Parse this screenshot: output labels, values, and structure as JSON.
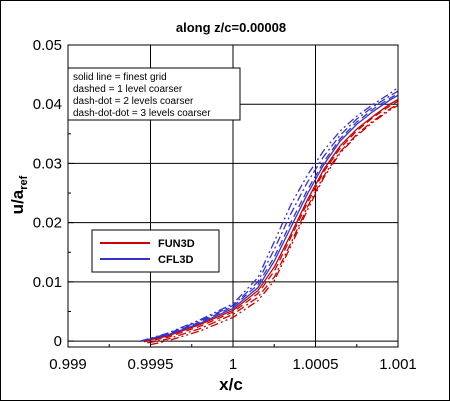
{
  "chart_data": {
    "type": "line",
    "title": "along z/c=0.00008",
    "xlabel": "x/c",
    "ylabel_main": "u/a",
    "ylabel_sub": "ref",
    "xlim": [
      0.999,
      1.001
    ],
    "ylim": [
      -0.001,
      0.05
    ],
    "xticks": [
      0.999,
      0.9995,
      1,
      1.0005,
      1.001
    ],
    "xtick_labels": [
      "0.999",
      "0.9995",
      "1",
      "1.0005",
      "1.001"
    ],
    "yticks": [
      0,
      0.01,
      0.02,
      0.03,
      0.04,
      0.05
    ],
    "ytick_labels": [
      "0",
      "0.01",
      "0.02",
      "0.03",
      "0.04",
      "0.05"
    ],
    "grid": true,
    "note_lines": [
      "solid line = finest grid",
      "dashed = 1 level coarser",
      "dash-dot = 2 levels coarser",
      "dash-dot-dot = 3 levels coarser"
    ],
    "legend": [
      {
        "name": "FUN3D",
        "color": "#cc0000"
      },
      {
        "name": "CFL3D",
        "color": "#3333cc"
      }
    ],
    "series": [
      {
        "name": "FUN3D",
        "grid": "finest",
        "style": "solid",
        "color": "#cc0000",
        "x": [
          0.99946,
          0.9996,
          0.9998,
          1.0,
          1.00015,
          1.00025,
          1.00035,
          1.00045,
          1.00055,
          1.00065,
          1.00075,
          1.00085,
          1.00095,
          1.001
        ],
        "y": [
          0.0,
          0.0008,
          0.0028,
          0.0052,
          0.0085,
          0.0125,
          0.018,
          0.0238,
          0.029,
          0.033,
          0.0358,
          0.038,
          0.04,
          0.0408
        ]
      },
      {
        "name": "FUN3D",
        "grid": "1 level coarser",
        "style": "dashed",
        "color": "#cc0000",
        "x": [
          0.99946,
          0.9996,
          0.9998,
          1.0,
          1.00015,
          1.00025,
          1.00035,
          1.00045,
          1.00055,
          1.00065,
          1.00075,
          1.00085,
          1.00095,
          1.001
        ],
        "y": [
          -0.0001,
          0.0006,
          0.0025,
          0.0049,
          0.008,
          0.0118,
          0.0175,
          0.0233,
          0.0286,
          0.0326,
          0.0355,
          0.0378,
          0.0397,
          0.0405
        ]
      },
      {
        "name": "FUN3D",
        "grid": "2 levels coarser",
        "style": "dash-dot",
        "color": "#cc0000",
        "x": [
          0.99948,
          0.9996,
          0.9998,
          1.0,
          1.00015,
          1.00025,
          1.00035,
          1.00045,
          1.00055,
          1.00065,
          1.00075,
          1.00085,
          1.00095,
          1.001
        ],
        "y": [
          -0.0003,
          0.0003,
          0.0021,
          0.0045,
          0.0074,
          0.0108,
          0.0165,
          0.0226,
          0.0279,
          0.032,
          0.0349,
          0.0372,
          0.0392,
          0.04
        ]
      },
      {
        "name": "FUN3D",
        "grid": "3 levels coarser",
        "style": "dash-dot-dot",
        "color": "#cc0000",
        "x": [
          0.9995,
          0.9996,
          0.9998,
          1.0,
          1.00015,
          1.00025,
          1.00035,
          1.00045,
          1.00055,
          1.00065,
          1.00075,
          1.00085,
          1.00095,
          1.001
        ],
        "y": [
          -0.0006,
          0.0,
          0.0017,
          0.004,
          0.0068,
          0.0102,
          0.016,
          0.0221,
          0.0276,
          0.0318,
          0.0347,
          0.037,
          0.039,
          0.0398
        ]
      },
      {
        "name": "CFL3D",
        "grid": "finest",
        "style": "solid",
        "color": "#3333cc",
        "x": [
          0.99944,
          0.9996,
          0.9998,
          1.0,
          1.00015,
          1.00025,
          1.00035,
          1.00045,
          1.00055,
          1.00065,
          1.00075,
          1.00085,
          1.00095,
          1.001
        ],
        "y": [
          0.0,
          0.001,
          0.003,
          0.0055,
          0.009,
          0.0135,
          0.0192,
          0.0248,
          0.0298,
          0.0338,
          0.0366,
          0.0388,
          0.0407,
          0.0415
        ]
      },
      {
        "name": "CFL3D",
        "grid": "1 level coarser",
        "style": "dashed",
        "color": "#3333cc",
        "x": [
          0.99944,
          0.9996,
          0.9998,
          1.0,
          1.00015,
          1.00025,
          1.00035,
          1.00045,
          1.00055,
          1.00065,
          1.00075,
          1.00085,
          1.00095,
          1.001
        ],
        "y": [
          0.0,
          0.0011,
          0.0032,
          0.0058,
          0.0095,
          0.0142,
          0.02,
          0.0255,
          0.0303,
          0.0342,
          0.037,
          0.0392,
          0.041,
          0.0418
        ]
      },
      {
        "name": "CFL3D",
        "grid": "2 levels coarser",
        "style": "dash-dot",
        "color": "#3333cc",
        "x": [
          0.99944,
          0.9996,
          0.9998,
          1.0,
          1.00015,
          1.00025,
          1.00035,
          1.00045,
          1.00055,
          1.00065,
          1.00075,
          1.00085,
          1.00095,
          1.001
        ],
        "y": [
          0.0,
          0.0012,
          0.0034,
          0.006,
          0.01,
          0.0155,
          0.0215,
          0.0268,
          0.0312,
          0.0348,
          0.0375,
          0.0396,
          0.0414,
          0.0422
        ]
      },
      {
        "name": "CFL3D",
        "grid": "3 levels coarser",
        "style": "dash-dot-dot",
        "color": "#3333cc",
        "x": [
          0.99944,
          0.9996,
          0.9998,
          1.0,
          1.00015,
          1.00025,
          1.00035,
          1.00045,
          1.00055,
          1.00065,
          1.00075,
          1.00085,
          1.00095,
          1.001
        ],
        "y": [
          0.0,
          0.0013,
          0.0036,
          0.0063,
          0.0107,
          0.0168,
          0.023,
          0.028,
          0.0322,
          0.0355,
          0.038,
          0.04,
          0.0418,
          0.0428
        ]
      }
    ]
  }
}
